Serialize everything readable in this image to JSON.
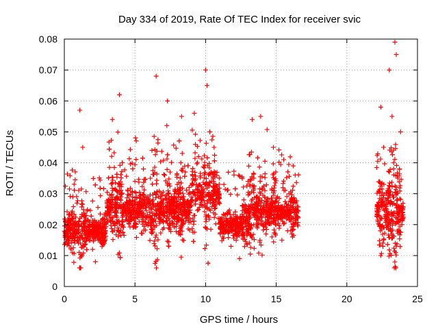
{
  "chart_data": {
    "type": "scatter",
    "title": "Day 334 of 2019, Rate Of TEC Index for receiver svic",
    "xlabel": "GPS time / hours",
    "ylabel": "ROTI / TECUs",
    "xlim": [
      0,
      25
    ],
    "ylim": [
      0,
      0.08
    ],
    "xticks": [
      0,
      5,
      10,
      15,
      20,
      25
    ],
    "yticks": [
      0,
      0.01,
      0.02,
      0.03,
      0.04,
      0.05,
      0.06,
      0.07,
      0.08
    ],
    "grid": true,
    "marker": "+",
    "color": "#ff0000",
    "data_extent_hours": [
      [
        0,
        16.6
      ],
      [
        22.1,
        24.0
      ]
    ],
    "series": [
      {
        "name": "ROTI",
        "points": [
          [
            0.2,
            0.016
          ],
          [
            0.4,
            0.021
          ],
          [
            0.6,
            0.029
          ],
          [
            0.8,
            0.018
          ],
          [
            1.0,
            0.014
          ],
          [
            1.1,
            0.057
          ],
          [
            1.3,
            0.045
          ],
          [
            1.5,
            0.022
          ],
          [
            1.7,
            0.016
          ],
          [
            2.0,
            0.012
          ],
          [
            2.2,
            0.008
          ],
          [
            2.5,
            0.015
          ],
          [
            2.8,
            0.019
          ],
          [
            3.1,
            0.024
          ],
          [
            3.4,
            0.054
          ],
          [
            3.7,
            0.031
          ],
          [
            3.9,
            0.062
          ],
          [
            4.1,
            0.04
          ],
          [
            4.4,
            0.023
          ],
          [
            4.7,
            0.027
          ],
          [
            5.0,
            0.034
          ],
          [
            5.3,
            0.021
          ],
          [
            5.6,
            0.038
          ],
          [
            5.9,
            0.029
          ],
          [
            6.2,
            0.044
          ],
          [
            6.5,
            0.068
          ],
          [
            6.8,
            0.025
          ],
          [
            7.1,
            0.036
          ],
          [
            7.3,
            0.06
          ],
          [
            7.6,
            0.028
          ],
          [
            8.0,
            0.033
          ],
          [
            8.3,
            0.055
          ],
          [
            8.6,
            0.022
          ],
          [
            8.9,
            0.03
          ],
          [
            9.2,
            0.056
          ],
          [
            9.5,
            0.042
          ],
          [
            9.8,
            0.026
          ],
          [
            10.0,
            0.07
          ],
          [
            10.1,
            0.065
          ],
          [
            10.3,
            0.05
          ],
          [
            10.6,
            0.045
          ],
          [
            10.9,
            0.022
          ],
          [
            11.2,
            0.016
          ],
          [
            11.5,
            0.02
          ],
          [
            11.8,
            0.013
          ],
          [
            12.1,
            0.018
          ],
          [
            12.4,
            0.009
          ],
          [
            12.7,
            0.028
          ],
          [
            13.0,
            0.034
          ],
          [
            13.3,
            0.054
          ],
          [
            13.6,
            0.027
          ],
          [
            13.9,
            0.055
          ],
          [
            14.2,
            0.031
          ],
          [
            14.5,
            0.021
          ],
          [
            14.8,
            0.045
          ],
          [
            15.1,
            0.025
          ],
          [
            15.4,
            0.015
          ],
          [
            15.8,
            0.018
          ],
          [
            16.2,
            0.039
          ],
          [
            16.5,
            0.02
          ],
          [
            22.2,
            0.021
          ],
          [
            22.4,
            0.058
          ],
          [
            22.6,
            0.045
          ],
          [
            22.8,
            0.03
          ],
          [
            23.0,
            0.07
          ],
          [
            23.2,
            0.055
          ],
          [
            23.4,
            0.079
          ],
          [
            23.5,
            0.075
          ],
          [
            23.6,
            0.035
          ],
          [
            23.8,
            0.05
          ],
          [
            23.9,
            0.02
          ]
        ]
      }
    ]
  }
}
